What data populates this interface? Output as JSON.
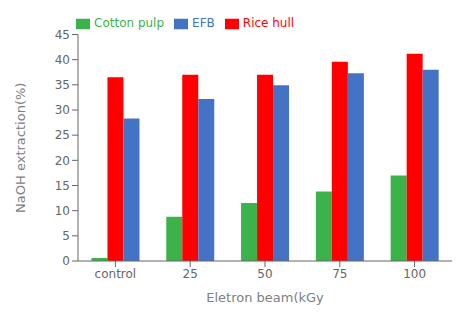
{
  "chart_data": {
    "type": "bar",
    "xlabel": "Eletron beam(kGy",
    "ylabel": "NaOH extraction(%)",
    "categories": [
      "control",
      "25",
      "50",
      "75",
      "100"
    ],
    "series": [
      {
        "name": "Cotton pulp",
        "color": "#3cb34a",
        "values": [
          0.6,
          8.8,
          11.5,
          13.8,
          17.0
        ]
      },
      {
        "name": "Rice hull",
        "color": "#ff0000",
        "values": [
          36.5,
          37.0,
          37.0,
          39.6,
          41.2
        ]
      },
      {
        "name": "EFB",
        "color": "#4472c4",
        "values": [
          28.3,
          32.2,
          34.9,
          37.3,
          38.0
        ]
      }
    ],
    "ylim": [
      0,
      45
    ],
    "yticks": [
      0,
      5,
      10,
      15,
      20,
      25,
      30,
      35,
      40,
      45
    ],
    "grid": false,
    "legend": "upper left"
  }
}
